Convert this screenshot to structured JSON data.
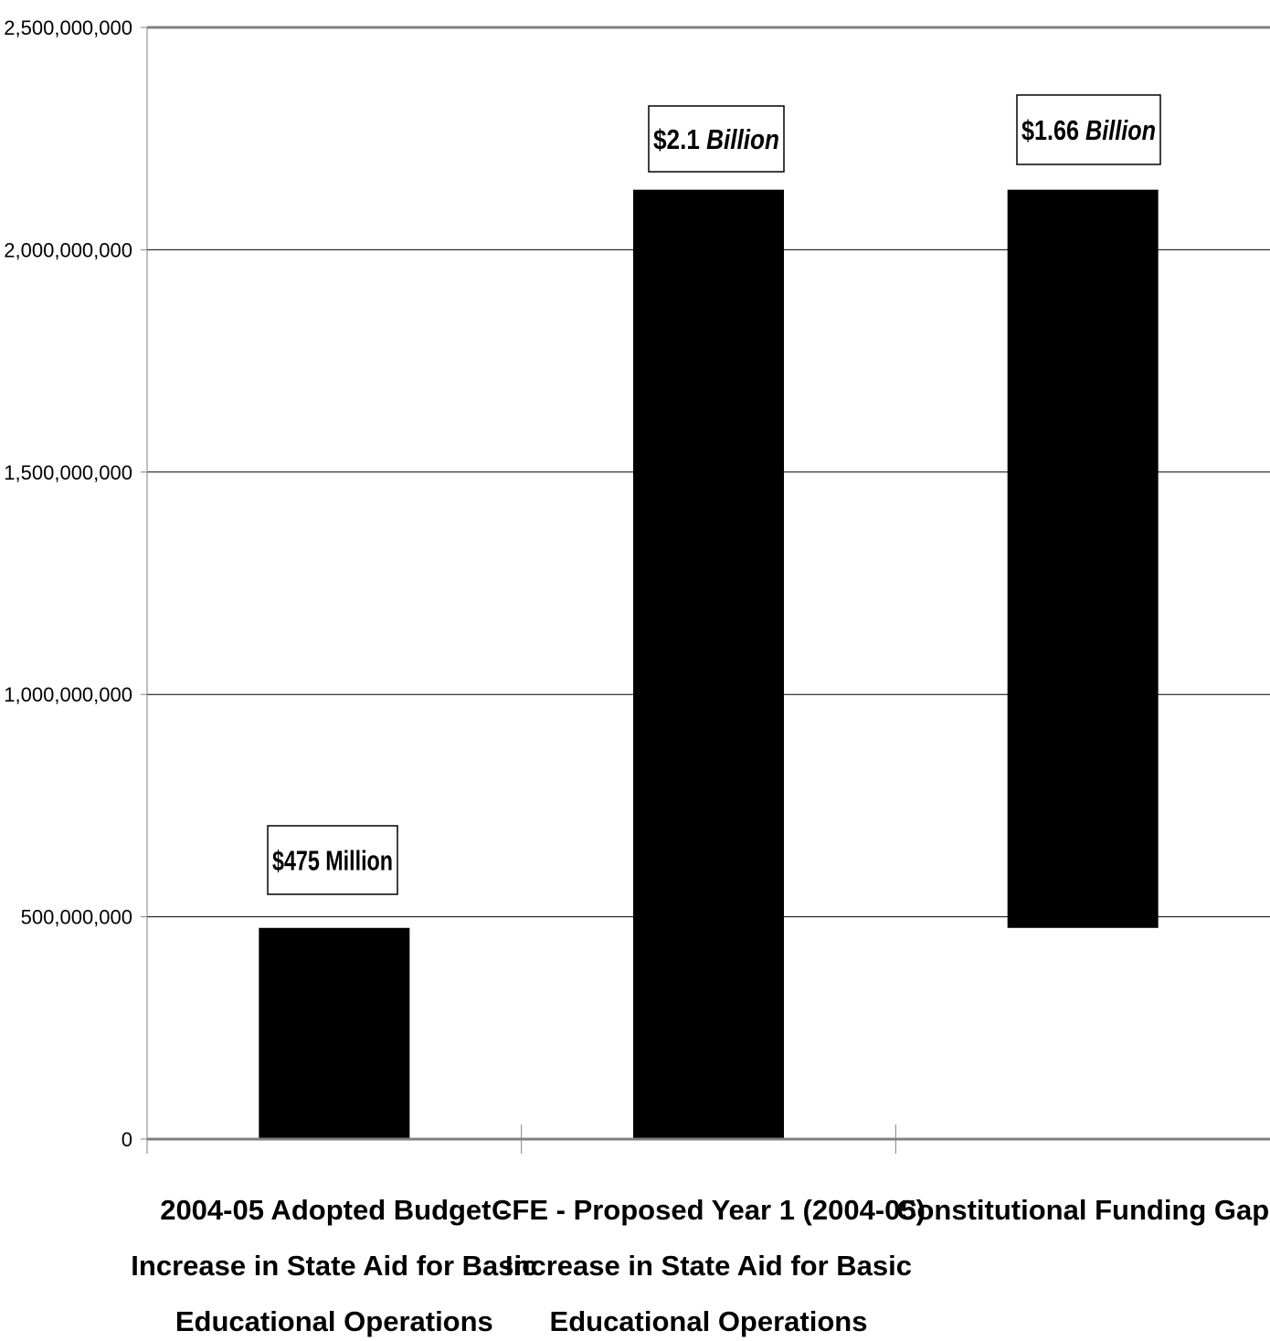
{
  "chart_data": {
    "type": "bar",
    "style": "floating-bar (waterfall)",
    "categories": [
      "2004-05 Adopted Budget - Increase in State Aid for Basic Educational Operations",
      "CFE - Proposed Year 1 (2004-05) Increase in State Aid for Basic Educational Operations",
      "Constitutional Funding Gap"
    ],
    "category_label_lines": [
      [
        "2004-05 Adopted Budget -",
        "Increase in State Aid for Basic",
        "Educational Operations"
      ],
      [
        "CFE - Proposed Year 1 (2004-05)",
        "Increase in State Aid for Basic",
        "Educational Operations"
      ],
      [
        "Constitutional Funding Gap"
      ]
    ],
    "bars": [
      {
        "base": 0,
        "top": 475000000
      },
      {
        "base": 0,
        "top": 2135000000
      },
      {
        "base": 475000000,
        "top": 2135000000
      }
    ],
    "values": [
      475000000,
      2135000000,
      1660000000
    ],
    "data_labels": [
      {
        "amount": "$475 Million",
        "unit": ""
      },
      {
        "amount": "$2.1 ",
        "unit": "Billion"
      },
      {
        "amount": "$1.66 ",
        "unit": "Billion"
      }
    ],
    "ylim": [
      0,
      2500000000
    ],
    "yticks": [
      0,
      500000000,
      1000000000,
      1500000000,
      2000000000,
      2500000000
    ],
    "ytick_labels": [
      "0",
      "500,000,000",
      "1,000,000,000",
      "1,500,000,000",
      "2,000,000,000",
      "2,500,000,000"
    ],
    "title": "",
    "xlabel": "",
    "ylabel": "",
    "grid": true,
    "legend": "none",
    "colors": {
      "bar": "#000000",
      "grid": "#000000",
      "axis": "#808080",
      "background": "#ffffff"
    }
  }
}
